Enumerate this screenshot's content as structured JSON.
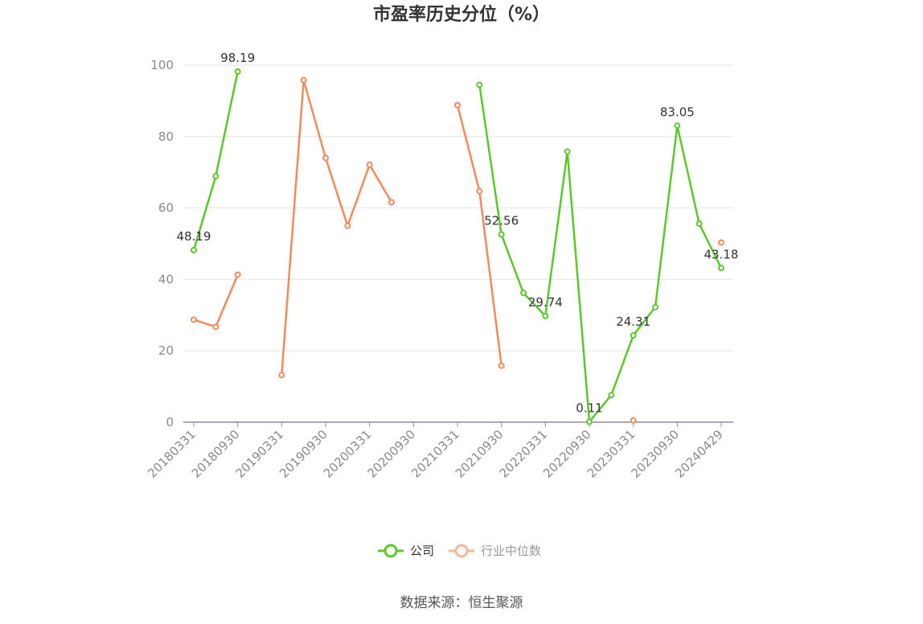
{
  "chart_data": {
    "type": "line",
    "title": "市盈率历史分位（%）",
    "source": "数据来源：恒生聚源",
    "ylim": [
      0,
      100
    ],
    "yticks": [
      0,
      20,
      40,
      60,
      80,
      100
    ],
    "grid": true,
    "legend_position": "bottom",
    "x": [
      "20180331",
      "20180630",
      "20180930",
      "20181231",
      "20190331",
      "20190630",
      "20190930",
      "20191231",
      "20200331",
      "20200630",
      "20200930",
      "20201231",
      "20210331",
      "20210630",
      "20210930",
      "20211231",
      "20220331",
      "20220630",
      "20220930",
      "20221231",
      "20230331",
      "20230630",
      "20230930",
      "20231231",
      "20240429"
    ],
    "xtick_labels": [
      "20180331",
      "20180930",
      "20190331",
      "20190930",
      "20200331",
      "20200930",
      "20210331",
      "20210930",
      "20220331",
      "20220930",
      "20230331",
      "20230930",
      "20240429"
    ],
    "series": [
      {
        "name": "公司",
        "color": "#5cc72a",
        "values": [
          48.19,
          68.9,
          98.19,
          null,
          null,
          null,
          null,
          null,
          null,
          null,
          null,
          null,
          null,
          94.5,
          52.56,
          36.2,
          29.74,
          75.8,
          0.11,
          7.6,
          24.31,
          32.2,
          83.05,
          55.6,
          43.18
        ]
      },
      {
        "name": "行业中位数",
        "color": "#f28a5c",
        "values": [
          28.7,
          26.7,
          41.3,
          null,
          13.2,
          95.8,
          74.0,
          55.0,
          72.1,
          61.6,
          null,
          null,
          88.8,
          64.7,
          15.8,
          null,
          null,
          null,
          null,
          null,
          0.5,
          null,
          null,
          null,
          50.3
        ]
      }
    ],
    "data_labels": [
      {
        "series": 0,
        "index": 0,
        "text": "48.19"
      },
      {
        "series": 0,
        "index": 2,
        "text": "98.19"
      },
      {
        "series": 0,
        "index": 14,
        "text": "52.56"
      },
      {
        "series": 0,
        "index": 16,
        "text": "29.74"
      },
      {
        "series": 0,
        "index": 18,
        "text": "0.11"
      },
      {
        "series": 0,
        "index": 20,
        "text": "24.31"
      },
      {
        "series": 0,
        "index": 22,
        "text": "83.05"
      },
      {
        "series": 0,
        "index": 24,
        "text": "43.18"
      }
    ]
  }
}
